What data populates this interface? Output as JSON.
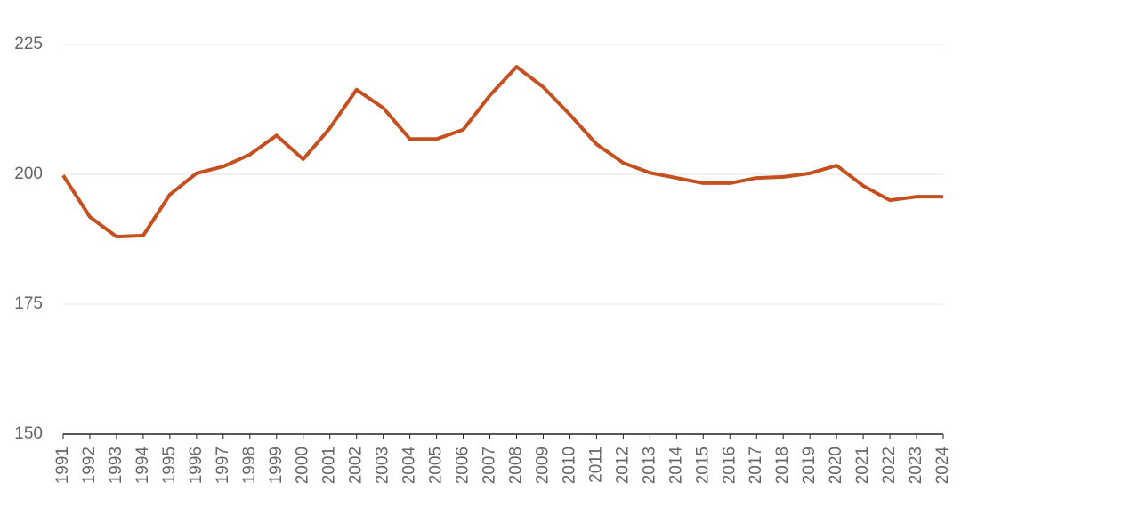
{
  "chart_data": {
    "type": "line",
    "categories": [
      "1991",
      "1992",
      "1993",
      "1994",
      "1995",
      "1996",
      "1997",
      "1998",
      "1999",
      "2000",
      "2001",
      "2002",
      "2003",
      "2004",
      "2005",
      "2006",
      "2007",
      "2008",
      "2009",
      "2010",
      "2011",
      "2012",
      "2013",
      "2014",
      "2015",
      "2016",
      "2017",
      "2018",
      "2019",
      "2020",
      "2021",
      "2022",
      "2023",
      "2024"
    ],
    "values": [
      199.8,
      191.8,
      188.0,
      188.2,
      196.1,
      200.2,
      201.5,
      203.8,
      207.5,
      202.9,
      208.9,
      216.3,
      212.8,
      206.8,
      206.8,
      208.6,
      215.2,
      220.7,
      216.8,
      211.5,
      205.8,
      202.2,
      200.3,
      199.3,
      198.3,
      198.3,
      199.3,
      199.5,
      200.2,
      201.7,
      197.8,
      195.0,
      195.7,
      195.7
    ],
    "color": "#c4501f",
    "ylim": [
      150,
      225
    ],
    "yticks": [
      150,
      175,
      200,
      225
    ],
    "grid": true
  }
}
